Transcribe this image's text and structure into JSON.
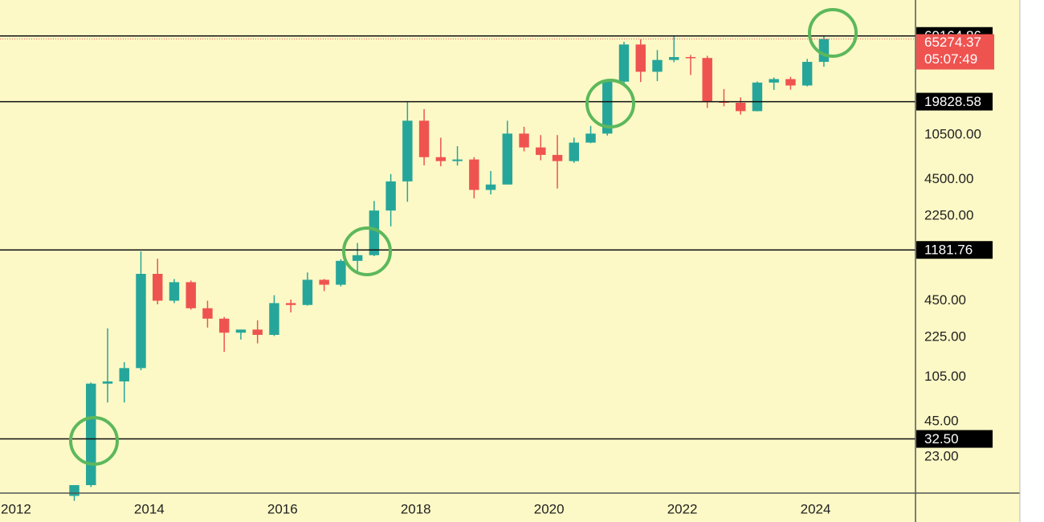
{
  "chart_data": {
    "type": "candlestick",
    "log_scale": true,
    "x": [
      2012.875,
      2013.125,
      2013.375,
      2013.625,
      2013.875,
      2014.125,
      2014.375,
      2014.625,
      2014.875,
      2015.125,
      2015.375,
      2015.625,
      2015.875,
      2016.125,
      2016.375,
      2016.625,
      2016.875,
      2017.125,
      2017.375,
      2017.625,
      2017.875,
      2018.125,
      2018.375,
      2018.625,
      2018.875,
      2019.125,
      2019.375,
      2019.625,
      2019.875,
      2020.125,
      2020.375,
      2020.625,
      2020.875,
      2021.125,
      2021.375,
      2021.625,
      2021.875,
      2022.125,
      2022.375,
      2022.625,
      2022.875,
      2023.125,
      2023.375,
      2023.625,
      2023.875,
      2024.125
    ],
    "open": [
      11,
      13.5,
      93,
      97,
      125,
      750,
      450,
      640,
      390,
      320,
      245,
      260,
      235,
      430,
      415,
      670,
      610,
      960,
      1070,
      2500,
      4350,
      13800,
      6900,
      6400,
      6600,
      3700,
      4100,
      10800,
      8300,
      7200,
      6400,
      9100,
      10800,
      29000,
      58800,
      35000,
      43800,
      46300,
      45500,
      19900,
      19400,
      16550,
      28500,
      30450,
      26950,
      42250
    ],
    "high": [
      13.5,
      95,
      266,
      140,
      1150,
      1000,
      680,
      660,
      450,
      330,
      260,
      310,
      500,
      460,
      770,
      680,
      990,
      1350,
      3000,
      5000,
      19800,
      17200,
      9990,
      8500,
      6900,
      5300,
      13800,
      12300,
      10500,
      10500,
      10000,
      12500,
      29300,
      61800,
      64800,
      52900,
      69000,
      48200,
      47400,
      25200,
      21500,
      29100,
      31400,
      31800,
      44700,
      69000
    ],
    "low": [
      10,
      13,
      65,
      65,
      120,
      420,
      430,
      380,
      270,
      170,
      215,
      200,
      230,
      360,
      410,
      540,
      590,
      750,
      1050,
      1850,
      2950,
      5900,
      5800,
      5880,
      3150,
      3400,
      4100,
      7700,
      6500,
      3800,
      6200,
      9000,
      10400,
      28100,
      28800,
      29300,
      42000,
      32900,
      17600,
      18150,
      15500,
      16500,
      24800,
      24900,
      26500,
      38500
    ],
    "close": [
      13.5,
      93,
      97,
      125,
      750,
      450,
      640,
      390,
      320,
      245,
      260,
      235,
      430,
      415,
      670,
      610,
      960,
      1070,
      2500,
      4350,
      13800,
      6900,
      6400,
      6600,
      3700,
      4100,
      10800,
      8300,
      7200,
      6400,
      9100,
      10800,
      29000,
      58800,
      35000,
      43800,
      46300,
      45500,
      19900,
      19400,
      16550,
      28500,
      30450,
      26950,
      42250,
      65274.37
    ],
    "up_color": "#26a69a",
    "down_color": "#ef5350",
    "xlim": [
      2011.76,
      2025.5
    ],
    "xticks": [
      2012,
      2014,
      2016,
      2018,
      2020,
      2022,
      2024
    ],
    "ylim": [
      11.6,
      137000
    ],
    "yticks": [
      {
        "value": 23,
        "label": "23.00"
      },
      {
        "value": 45,
        "label": "45.00"
      },
      {
        "value": 105,
        "label": "105.00"
      },
      {
        "value": 225,
        "label": "225.00"
      },
      {
        "value": 450,
        "label": "450.00"
      },
      {
        "value": 2250,
        "label": "2250.00"
      },
      {
        "value": 4500,
        "label": "4500.00"
      },
      {
        "value": 10500,
        "label": "10500.00"
      }
    ],
    "levels": [
      {
        "value": 32.5,
        "label": "32.50"
      },
      {
        "value": 1181.76,
        "label": "1181.76"
      },
      {
        "value": 19828.58,
        "label": "19828.58"
      },
      {
        "value": 69164.86,
        "label": "69164.86"
      }
    ],
    "current_price": {
      "value": 65274.37,
      "label": "65274.37",
      "color": "#ef5350"
    },
    "countdown": "05:07:49"
  }
}
